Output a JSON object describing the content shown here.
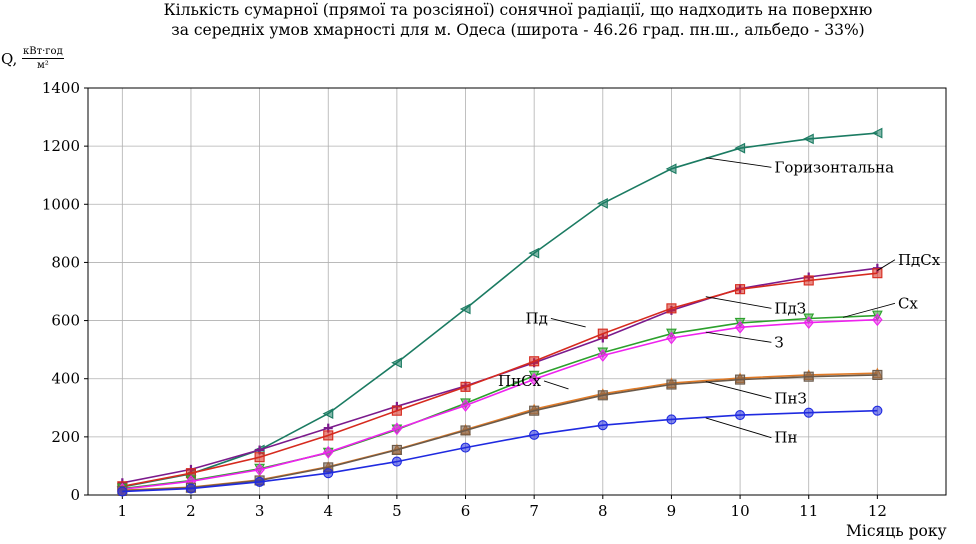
{
  "chart_data": {
    "type": "line",
    "title": "Кількість сумарної (прямої та розсіяної) сонячної радіації, що надходить на поверхню",
    "subtitle": "за середніх умов хмарності для м. Одеса (широта - 46.26 град. пн.ш., альбедо - 33%)",
    "ylabel": "Q,",
    "yunit_num": "кВт·год",
    "yunit_den": "м²",
    "xlabel": "Місяць року",
    "x": [
      1,
      2,
      3,
      4,
      5,
      6,
      7,
      8,
      9,
      10,
      11,
      12
    ],
    "xlim": [
      0.5,
      13
    ],
    "ylim": [
      0,
      1400
    ],
    "yticks": [
      0,
      200,
      400,
      600,
      800,
      1000,
      1200,
      1400
    ],
    "grid": true,
    "series": [
      {
        "name": "Горизонтальна",
        "color": "#1b7b62",
        "marker": "triangle-left",
        "values": [
          28,
          73,
          155,
          280,
          455,
          640,
          832,
          1003,
          1122,
          1193,
          1225,
          1245
        ]
      },
      {
        "name": "ПдСх",
        "color": "#7b1a8c",
        "marker": "plus",
        "values": [
          42,
          88,
          155,
          230,
          305,
          375,
          455,
          540,
          635,
          710,
          750,
          780
        ]
      },
      {
        "name": "ПдЗ",
        "color": "#d62a1e",
        "marker": "square",
        "values": [
          30,
          75,
          130,
          205,
          290,
          372,
          460,
          555,
          642,
          708,
          738,
          763
        ]
      },
      {
        "name": "Сх",
        "color": "#2ca02c",
        "marker": "triangle-down",
        "values": [
          22,
          50,
          90,
          145,
          225,
          315,
          410,
          490,
          555,
          592,
          607,
          617
        ]
      },
      {
        "name": "З",
        "color": "#ee22ee",
        "marker": "diamond",
        "values": [
          20,
          47,
          87,
          147,
          228,
          308,
          398,
          480,
          540,
          577,
          593,
          603
        ]
      },
      {
        "name": "ПнЗ",
        "color": "#e07b28",
        "marker": "triangle-up",
        "values": [
          16,
          27,
          52,
          97,
          157,
          225,
          295,
          348,
          385,
          402,
          413,
          419
        ]
      },
      {
        "name": "ПнСх",
        "color": "#6b5a4a",
        "marker": "square",
        "values": [
          14,
          25,
          50,
          95,
          155,
          222,
          290,
          343,
          380,
          397,
          407,
          413
        ]
      },
      {
        "name": "Пн",
        "color": "#1f2ae0",
        "marker": "circle",
        "values": [
          12,
          22,
          45,
          75,
          115,
          163,
          207,
          240,
          260,
          275,
          283,
          290
        ]
      }
    ],
    "labels": [
      {
        "series": "Горизонтальна",
        "text": "Горизонтальна",
        "at_x": 9.5,
        "at_y": 1160,
        "text_x": 10.5,
        "text_y": 1110,
        "anchor": "start"
      },
      {
        "series": "ПдСх",
        "text": "ПдСх",
        "at_x": 12,
        "at_y": 772,
        "text_x": 12.3,
        "text_y": 792,
        "anchor": "start"
      },
      {
        "series": "ПдЗ",
        "text": "ПдЗ",
        "at_x": 9.5,
        "at_y": 682,
        "text_x": 10.5,
        "text_y": 625,
        "anchor": "start"
      },
      {
        "series": "Сх",
        "text": "Сх",
        "at_x": 11.5,
        "at_y": 611,
        "text_x": 12.3,
        "text_y": 642,
        "anchor": "start"
      },
      {
        "series": "ПдЗ",
        "text": "Пд",
        "at_x": 7.75,
        "at_y": 578,
        "text_x": 7.2,
        "text_y": 590,
        "anchor": "end"
      },
      {
        "series": "З",
        "text": "З",
        "at_x": 9.5,
        "at_y": 560,
        "text_x": 10.5,
        "text_y": 508,
        "anchor": "start"
      },
      {
        "series": "ПнСх",
        "text": "ПнСх",
        "at_x": 7.5,
        "at_y": 365,
        "text_x": 7.1,
        "text_y": 375,
        "anchor": "end"
      },
      {
        "series": "ПнЗ",
        "text": "ПнЗ",
        "at_x": 9.5,
        "at_y": 390,
        "text_x": 10.5,
        "text_y": 315,
        "anchor": "start"
      },
      {
        "series": "Пн",
        "text": "Пн",
        "at_x": 9.5,
        "at_y": 265,
        "text_x": 10.5,
        "text_y": 180,
        "anchor": "start"
      }
    ]
  }
}
